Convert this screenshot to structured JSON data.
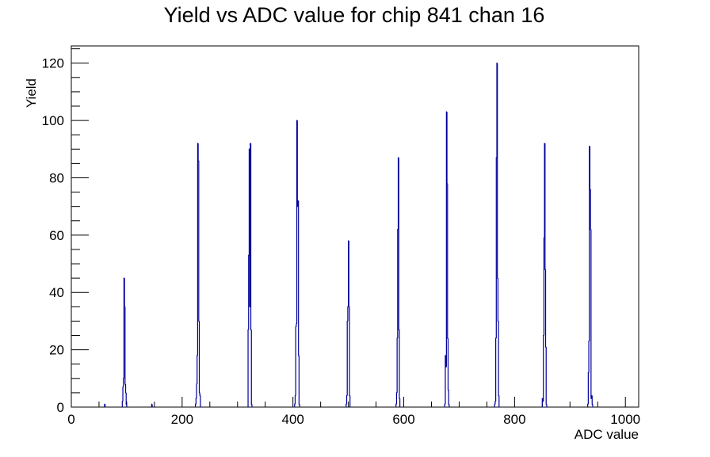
{
  "chart_data": {
    "type": "bar",
    "style": "step-histogram",
    "title": "Yield vs ADC value for chip 841 chan 16",
    "xlabel": "ADC value",
    "ylabel": "Yield",
    "xlim": [
      0,
      1024
    ],
    "ylim": [
      0,
      126
    ],
    "xticks": [
      0,
      200,
      400,
      600,
      800,
      1000
    ],
    "yticks": [
      0,
      20,
      40,
      60,
      80,
      100,
      120
    ],
    "grid": false,
    "line_color": "#000099",
    "bin_width": 1,
    "peaks": [
      {
        "start": 60,
        "counts": [
          1
        ]
      },
      {
        "start": 145,
        "counts": [
          1
        ]
      },
      {
        "start": 92,
        "counts": [
          2,
          7,
          10,
          45,
          35,
          8,
          5,
          1
        ]
      },
      {
        "start": 224,
        "counts": [
          1,
          3,
          8,
          18,
          92,
          86,
          30,
          5,
          4
        ]
      },
      {
        "start": 319,
        "counts": [
          27,
          53,
          90,
          35,
          92,
          27,
          1
        ]
      },
      {
        "start": 403,
        "counts": [
          1,
          4,
          28,
          29,
          100,
          70,
          72,
          18,
          1
        ]
      },
      {
        "start": 496,
        "counts": [
          1,
          4,
          30,
          35,
          58,
          35,
          4
        ]
      },
      {
        "start": 586,
        "counts": [
          1,
          5,
          24,
          62,
          87,
          27,
          3
        ]
      },
      {
        "start": 674,
        "counts": [
          1,
          18,
          14,
          103,
          78,
          24,
          6,
          1
        ]
      },
      {
        "start": 764,
        "counts": [
          1,
          2,
          24,
          87,
          120,
          45,
          30,
          4
        ]
      },
      {
        "start": 850,
        "counts": [
          3,
          2,
          25,
          59,
          92,
          48,
          21,
          1
        ]
      },
      {
        "start": 932,
        "counts": [
          1,
          12,
          23,
          91,
          76,
          62,
          3,
          4,
          1
        ]
      }
    ]
  }
}
